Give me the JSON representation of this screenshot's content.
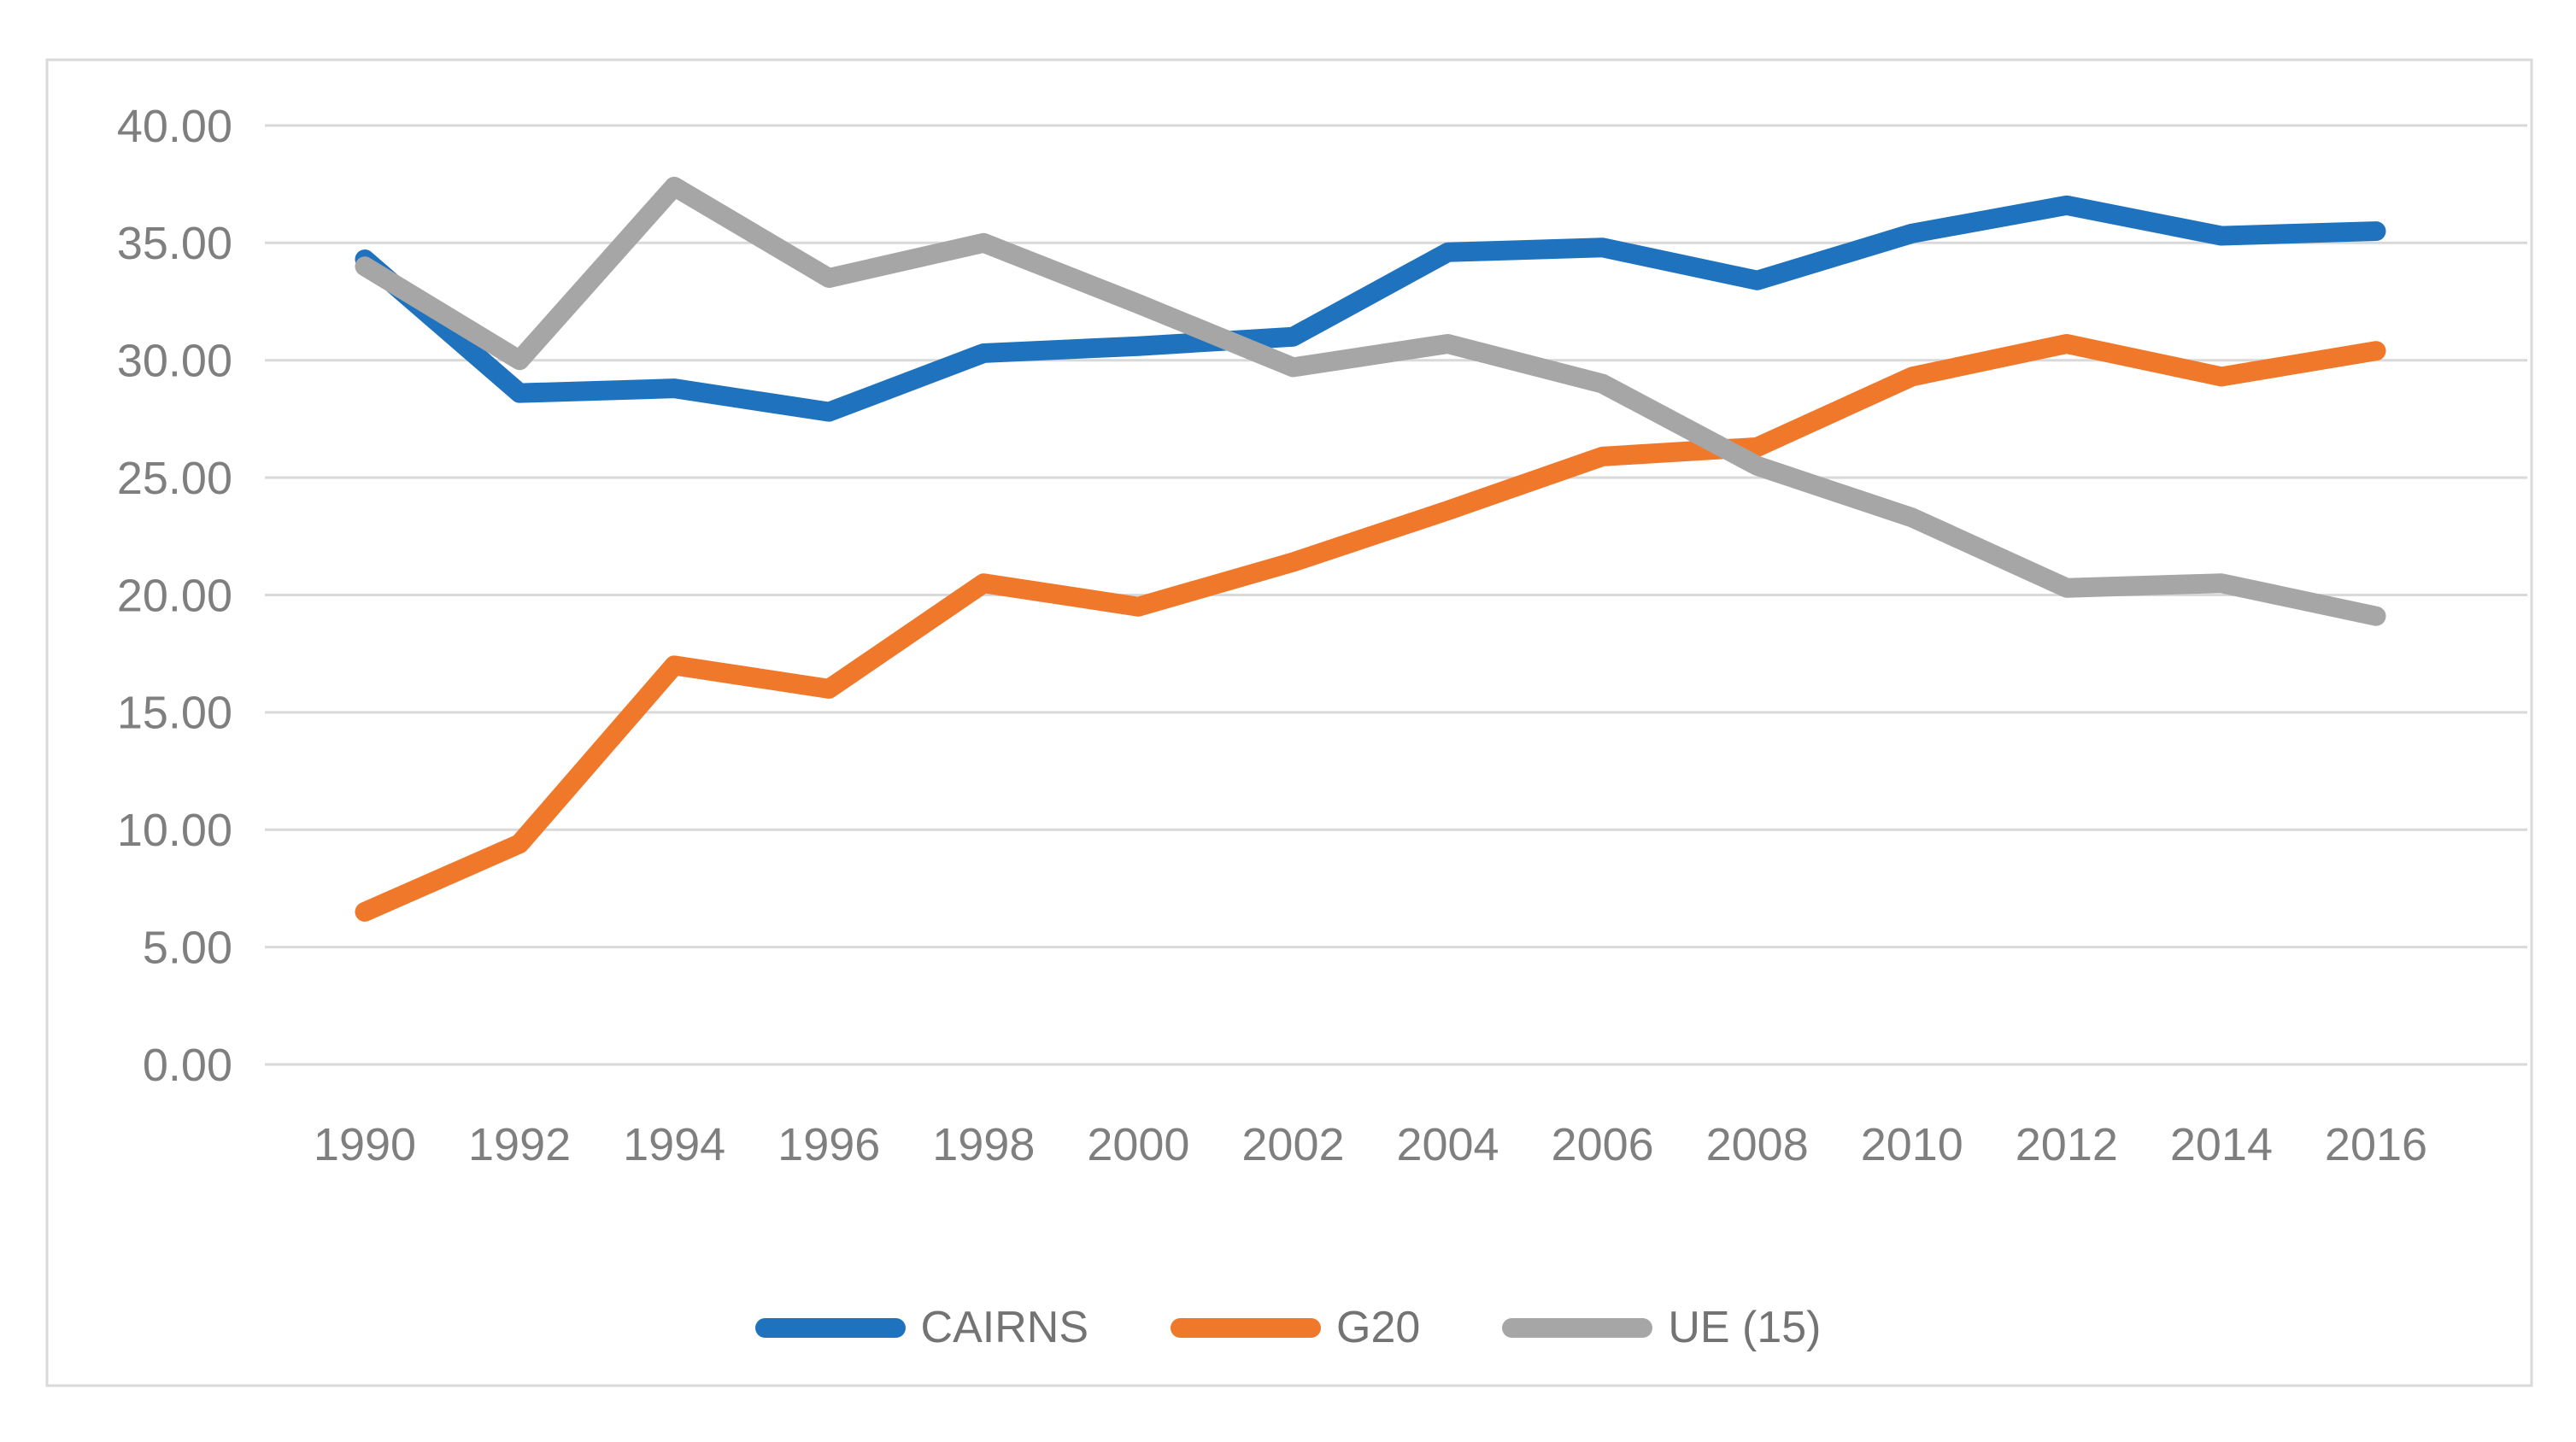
{
  "figure": {
    "background_color": "#ffffff",
    "border_color": "#d9d9d9",
    "gridline_color": "#d9d9d9",
    "tick_label_color": "#7f7f7f",
    "legend_text_color": "#737373"
  },
  "chart_data": {
    "type": "line",
    "title": "",
    "xlabel": "",
    "ylabel": "",
    "categories": [
      "1990",
      "1992",
      "1994",
      "1996",
      "1998",
      "2000",
      "2002",
      "2004",
      "2006",
      "2008",
      "2010",
      "2012",
      "2014",
      "2016"
    ],
    "series": [
      {
        "name": "CAIRNS",
        "color": "#1f72be",
        "values": [
          34.3,
          28.6,
          28.8,
          27.8,
          30.3,
          30.6,
          31.0,
          34.6,
          34.8,
          33.4,
          35.4,
          36.6,
          35.3,
          35.5
        ]
      },
      {
        "name": "G20",
        "color": "#f0782a",
        "values": [
          6.5,
          9.4,
          17.0,
          16.0,
          20.5,
          19.5,
          21.4,
          23.6,
          25.9,
          26.3,
          29.3,
          30.7,
          29.3,
          30.4
        ]
      },
      {
        "name": "UE (15)",
        "color": "#a6a6a6",
        "values": [
          34.0,
          30.0,
          37.4,
          33.5,
          35.0,
          32.4,
          29.7,
          30.7,
          29.0,
          25.5,
          23.3,
          20.3,
          20.5,
          19.1
        ]
      }
    ],
    "ylim": [
      0,
      40
    ],
    "ytick_step": 5,
    "ytick_labels": [
      "0.00",
      "5.00",
      "10.00",
      "15.00",
      "20.00",
      "25.00",
      "30.00",
      "35.00",
      "40.00"
    ],
    "grid": "horizontal",
    "legend_position": "bottom"
  },
  "legend": {
    "items": [
      {
        "label": "CAIRNS"
      },
      {
        "label": "G20"
      },
      {
        "label": "UE (15)"
      }
    ]
  }
}
